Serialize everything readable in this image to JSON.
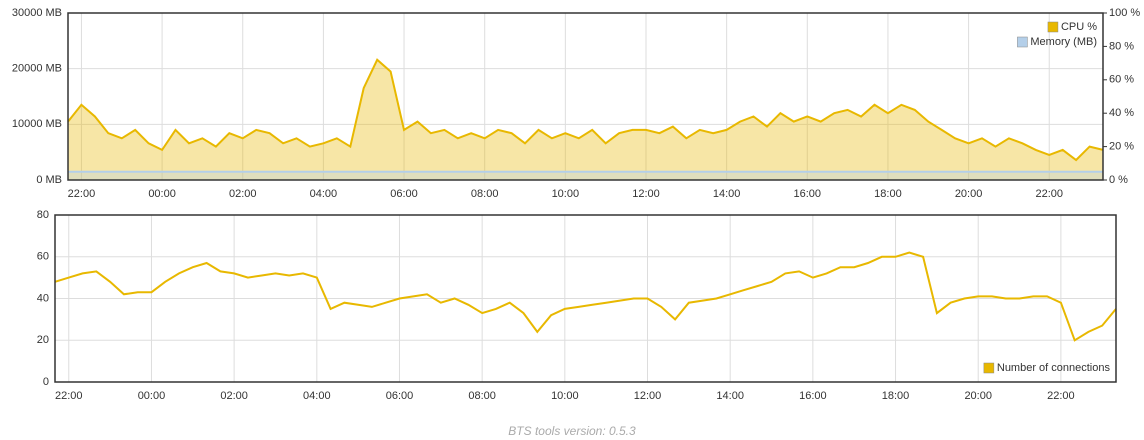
{
  "chart_data": [
    {
      "type": "area",
      "x": [
        "21:40",
        "22:00",
        "22:20",
        "22:40",
        "23:00",
        "23:20",
        "23:40",
        "00:00",
        "00:20",
        "00:40",
        "01:00",
        "01:20",
        "01:40",
        "02:00",
        "02:20",
        "02:40",
        "03:00",
        "03:20",
        "03:40",
        "04:00",
        "04:20",
        "04:40",
        "05:00",
        "05:20",
        "05:40",
        "06:00",
        "06:20",
        "06:40",
        "07:00",
        "07:20",
        "07:40",
        "08:00",
        "08:20",
        "08:40",
        "09:00",
        "09:20",
        "09:40",
        "10:00",
        "10:20",
        "10:40",
        "11:00",
        "11:20",
        "11:40",
        "12:00",
        "12:20",
        "12:40",
        "13:00",
        "13:20",
        "13:40",
        "14:00",
        "14:20",
        "14:40",
        "15:00",
        "15:20",
        "15:40",
        "16:00",
        "16:20",
        "16:40",
        "17:00",
        "17:20",
        "17:40",
        "18:00",
        "18:20",
        "18:40",
        "19:00",
        "19:20",
        "19:40",
        "20:00",
        "20:20",
        "20:40",
        "21:00",
        "21:20",
        "21:40",
        "22:00",
        "22:20",
        "22:40",
        "23:00",
        "23:20"
      ],
      "xticks": [
        "22:00",
        "00:00",
        "02:00",
        "04:00",
        "06:00",
        "08:00",
        "10:00",
        "12:00",
        "14:00",
        "16:00",
        "18:00",
        "20:00",
        "22:00"
      ],
      "ylim": [
        0,
        30000
      ],
      "yticks": [
        {
          "value": 0,
          "label": "0 MB"
        },
        {
          "value": 10000,
          "label": "10000 MB"
        },
        {
          "value": 20000,
          "label": "20000 MB"
        },
        {
          "value": 30000,
          "label": "30000 MB"
        }
      ],
      "y2lim": [
        0,
        100
      ],
      "y2ticks": [
        {
          "value": 0,
          "label": "0 %"
        },
        {
          "value": 20,
          "label": "20 %"
        },
        {
          "value": 40,
          "label": "40 %"
        },
        {
          "value": 60,
          "label": "60 %"
        },
        {
          "value": 80,
          "label": "80 %"
        },
        {
          "value": 100,
          "label": "100 %"
        }
      ],
      "grid": true,
      "legend": "top-right",
      "series": [
        {
          "name": "CPU %",
          "color": "#e8b800",
          "axis": "y2",
          "values": [
            35,
            45,
            38,
            28,
            25,
            30,
            22,
            18,
            30,
            22,
            25,
            20,
            28,
            25,
            30,
            28,
            22,
            25,
            20,
            22,
            25,
            20,
            55,
            72,
            65,
            30,
            35,
            28,
            30,
            25,
            28,
            25,
            30,
            28,
            22,
            30,
            25,
            28,
            25,
            30,
            22,
            28,
            30,
            30,
            28,
            32,
            25,
            30,
            28,
            30,
            35,
            38,
            32,
            40,
            35,
            38,
            35,
            40,
            42,
            38,
            45,
            40,
            45,
            42,
            35,
            30,
            25,
            22,
            25,
            20,
            25,
            22,
            18,
            15,
            18,
            12,
            20,
            18
          ]
        },
        {
          "name": "Memory (MB)",
          "color": "#b4cfe9",
          "axis": "y",
          "values": [
            1500,
            1500,
            1500,
            1500,
            1500,
            1500,
            1500,
            1500,
            1500,
            1500,
            1500,
            1500,
            1500,
            1500,
            1500,
            1500,
            1500,
            1500,
            1500,
            1500,
            1500,
            1500,
            1500,
            1500,
            1500,
            1500,
            1500,
            1500,
            1500,
            1500,
            1500,
            1500,
            1500,
            1500,
            1500,
            1500,
            1500,
            1500,
            1500,
            1500,
            1500,
            1500,
            1500,
            1500,
            1500,
            1500,
            1500,
            1500,
            1500,
            1500,
            1500,
            1500,
            1500,
            1500,
            1500,
            1500,
            1500,
            1500,
            1500,
            1500,
            1500,
            1500,
            1500,
            1500,
            1500,
            1500,
            1500,
            1500,
            1500,
            1500,
            1500,
            1500,
            1500,
            1500,
            1500,
            1500,
            1500,
            1500
          ]
        }
      ]
    },
    {
      "type": "line",
      "x": [
        "21:40",
        "22:00",
        "22:20",
        "22:40",
        "23:00",
        "23:20",
        "23:40",
        "00:00",
        "00:20",
        "00:40",
        "01:00",
        "01:20",
        "01:40",
        "02:00",
        "02:20",
        "02:40",
        "03:00",
        "03:20",
        "03:40",
        "04:00",
        "04:20",
        "04:40",
        "05:00",
        "05:20",
        "05:40",
        "06:00",
        "06:20",
        "06:40",
        "07:00",
        "07:20",
        "07:40",
        "08:00",
        "08:20",
        "08:40",
        "09:00",
        "09:20",
        "09:40",
        "10:00",
        "10:20",
        "10:40",
        "11:00",
        "11:20",
        "11:40",
        "12:00",
        "12:20",
        "12:40",
        "13:00",
        "13:20",
        "13:40",
        "14:00",
        "14:20",
        "14:40",
        "15:00",
        "15:20",
        "15:40",
        "16:00",
        "16:20",
        "16:40",
        "17:00",
        "17:20",
        "17:40",
        "18:00",
        "18:20",
        "18:40",
        "19:00",
        "19:20",
        "19:40",
        "20:00",
        "20:20",
        "20:40",
        "21:00",
        "21:20",
        "21:40",
        "22:00",
        "22:20",
        "22:40",
        "23:00",
        "23:20"
      ],
      "xticks": [
        "22:00",
        "00:00",
        "02:00",
        "04:00",
        "06:00",
        "08:00",
        "10:00",
        "12:00",
        "14:00",
        "16:00",
        "18:00",
        "20:00",
        "22:00"
      ],
      "ylim": [
        0,
        80
      ],
      "yticks": [
        0,
        20,
        40,
        60,
        80
      ],
      "grid": true,
      "legend": "bottom-right",
      "series": [
        {
          "name": "Number of connections",
          "color": "#e8b800",
          "values": [
            48,
            50,
            52,
            53,
            48,
            42,
            43,
            43,
            48,
            52,
            55,
            57,
            53,
            52,
            50,
            51,
            52,
            51,
            52,
            50,
            35,
            38,
            37,
            36,
            38,
            40,
            41,
            42,
            38,
            40,
            37,
            33,
            35,
            38,
            33,
            24,
            32,
            35,
            36,
            37,
            38,
            39,
            40,
            40,
            36,
            30,
            38,
            39,
            40,
            42,
            44,
            46,
            48,
            52,
            53,
            50,
            52,
            55,
            55,
            57,
            60,
            60,
            62,
            60,
            33,
            38,
            40,
            41,
            41,
            40,
            40,
            41,
            41,
            38,
            20,
            24,
            27,
            35
          ]
        }
      ]
    }
  ],
  "footer": "BTS tools version: 0.5.3"
}
